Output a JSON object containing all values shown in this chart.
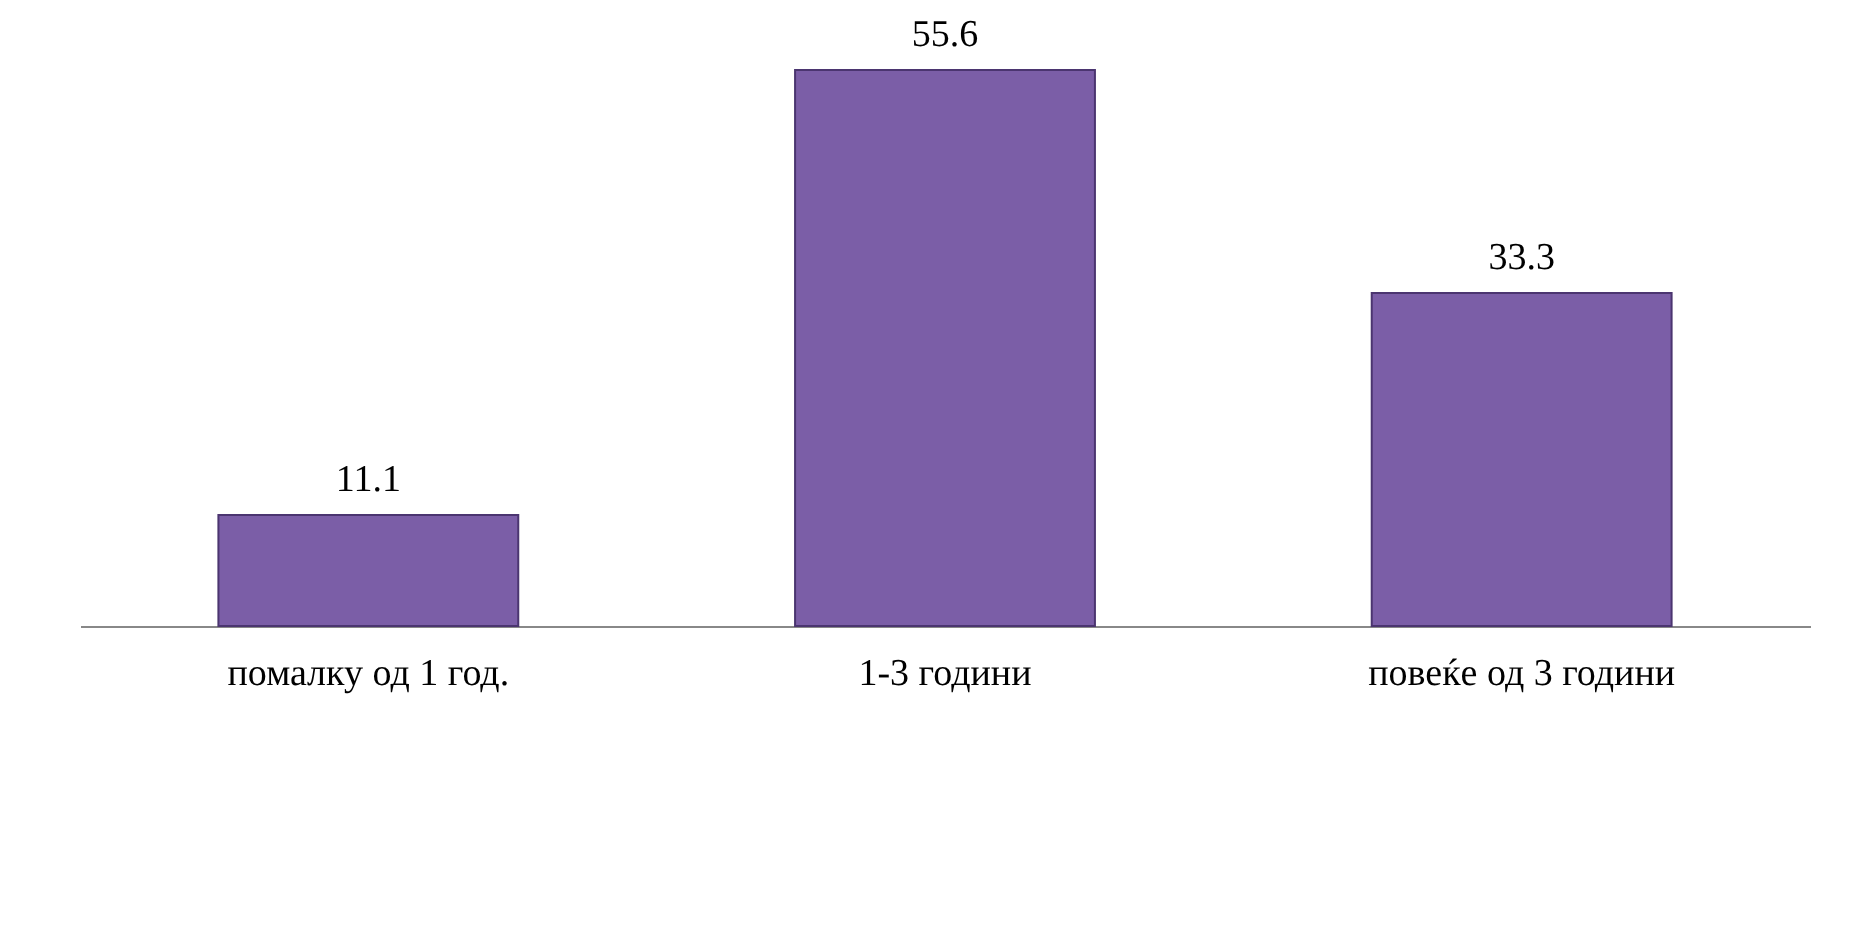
{
  "chart_data": {
    "type": "bar",
    "categories": [
      "помалку од 1 год.",
      "1-3 години",
      "повеќе од 3 години"
    ],
    "values": [
      11.1,
      55.6,
      33.3
    ],
    "color": "#7b5ea7",
    "data_labels": true
  }
}
